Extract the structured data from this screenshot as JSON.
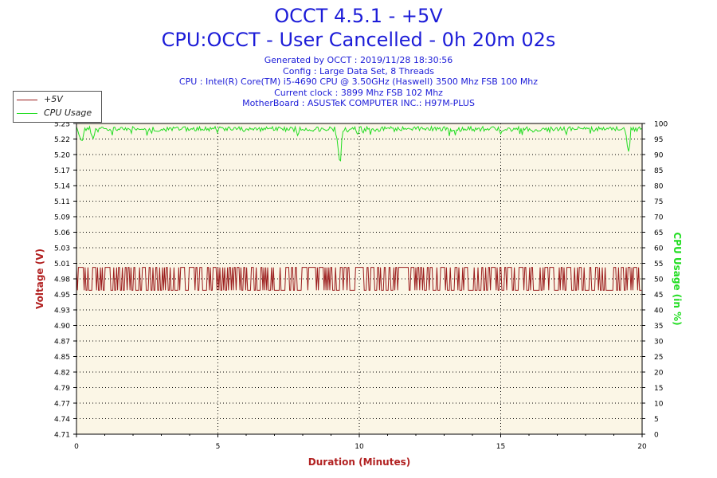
{
  "header": {
    "title": "OCCT 4.5.1 - +5V",
    "subtitle": "CPU:OCCT - User Cancelled - 0h 20m 02s",
    "info_lines": [
      "Generated by OCCT : 2019/11/28 18:30:56",
      "Config : Large Data Set, 8 Threads",
      "CPU : Intel(R) Core(TM) i5-4690 CPU @ 3.50GHz (Haswell) 3500 Mhz FSB 100 Mhz",
      "Current clock : 3899 Mhz FSB 102 Mhz",
      "MotherBoard : ASUSTeK COMPUTER INC.: H97M-PLUS"
    ]
  },
  "chart_data": {
    "type": "line",
    "xlabel": "Duration (Minutes)",
    "ylabel": "Voltage (V)",
    "y2label": "CPU Usage (in %)",
    "xlim": [
      0,
      20
    ],
    "x_ticks": [
      "0",
      "5",
      "10",
      "15",
      "20"
    ],
    "ylim": [
      4.71,
      5.25
    ],
    "y_ticks": [
      "4.71",
      "4.74",
      "4.77",
      "4.79",
      "4.82",
      "4.85",
      "4.87",
      "4.90",
      "4.93",
      "4.95",
      "4.98",
      "5.01",
      "5.03",
      "5.06",
      "5.09",
      "5.11",
      "5.14",
      "5.17",
      "5.20",
      "5.22",
      "5.25"
    ],
    "y2lim": [
      0,
      100
    ],
    "y2_ticks": [
      "0",
      "5",
      "10",
      "15",
      "20",
      "25",
      "30",
      "35",
      "40",
      "45",
      "50",
      "55",
      "60",
      "65",
      "70",
      "75",
      "80",
      "85",
      "90",
      "95",
      "100"
    ],
    "grid": true,
    "legend_position": "top-left",
    "series": [
      {
        "name": "+5V",
        "color": "#9b1c1c",
        "axis": "left",
        "range": [
          4.96,
          5.0
        ],
        "points": [
          [
            0,
            4.98
          ],
          [
            0.3,
            5.0
          ],
          [
            0.3,
            4.96
          ],
          [
            0.6,
            5.0
          ],
          [
            0.6,
            4.96
          ],
          [
            1,
            5.0
          ],
          [
            1,
            4.96
          ],
          [
            2,
            5.0
          ],
          [
            2,
            4.96
          ],
          [
            3,
            5.0
          ],
          [
            3,
            4.96
          ],
          [
            4,
            5.0
          ],
          [
            4,
            4.96
          ],
          [
            5,
            5.0
          ],
          [
            5,
            4.96
          ],
          [
            6,
            5.0
          ],
          [
            6,
            4.96
          ],
          [
            7,
            5.0
          ],
          [
            7,
            4.96
          ],
          [
            8,
            5.0
          ],
          [
            8,
            4.96
          ],
          [
            9,
            5.0
          ],
          [
            9,
            4.96
          ],
          [
            10,
            5.0
          ],
          [
            10,
            4.96
          ],
          [
            11,
            5.0
          ],
          [
            11,
            4.96
          ],
          [
            12,
            5.0
          ],
          [
            12,
            4.96
          ],
          [
            13,
            5.0
          ],
          [
            13,
            4.96
          ],
          [
            14,
            5.0
          ],
          [
            14,
            4.96
          ],
          [
            15,
            5.0
          ],
          [
            15,
            4.96
          ],
          [
            16,
            5.0
          ],
          [
            16,
            4.96
          ],
          [
            17,
            5.0
          ],
          [
            17,
            4.96
          ],
          [
            18,
            5.0
          ],
          [
            18,
            4.96
          ],
          [
            19,
            5.0
          ],
          [
            19,
            4.96
          ],
          [
            20,
            4.98
          ]
        ]
      },
      {
        "name": "CPU Usage",
        "color": "#22dd22",
        "axis": "right",
        "points": [
          [
            0,
            99
          ],
          [
            0.1,
            96
          ],
          [
            0.2,
            94
          ],
          [
            0.3,
            99
          ],
          [
            0.5,
            97
          ],
          [
            0.6,
            95
          ],
          [
            0.7,
            99
          ],
          [
            1.5,
            99
          ],
          [
            2,
            98
          ],
          [
            2.5,
            99
          ],
          [
            3,
            99
          ],
          [
            3.5,
            98
          ],
          [
            4,
            99
          ],
          [
            5,
            99
          ],
          [
            6,
            99
          ],
          [
            7,
            99
          ],
          [
            8,
            99
          ],
          [
            9,
            99
          ],
          [
            9.2,
            96
          ],
          [
            9.3,
            88
          ],
          [
            9.35,
            88
          ],
          [
            9.4,
            99
          ],
          [
            9.9,
            99
          ],
          [
            9.95,
            95
          ],
          [
            10,
            99
          ],
          [
            11,
            99
          ],
          [
            12,
            99
          ],
          [
            13,
            99
          ],
          [
            14,
            99
          ],
          [
            15,
            99
          ],
          [
            16,
            99
          ],
          [
            17,
            99
          ],
          [
            18,
            99
          ],
          [
            19,
            99
          ],
          [
            19.4,
            99
          ],
          [
            19.5,
            91
          ],
          [
            19.55,
            91
          ],
          [
            19.6,
            99
          ],
          [
            20,
            99
          ]
        ]
      }
    ]
  }
}
